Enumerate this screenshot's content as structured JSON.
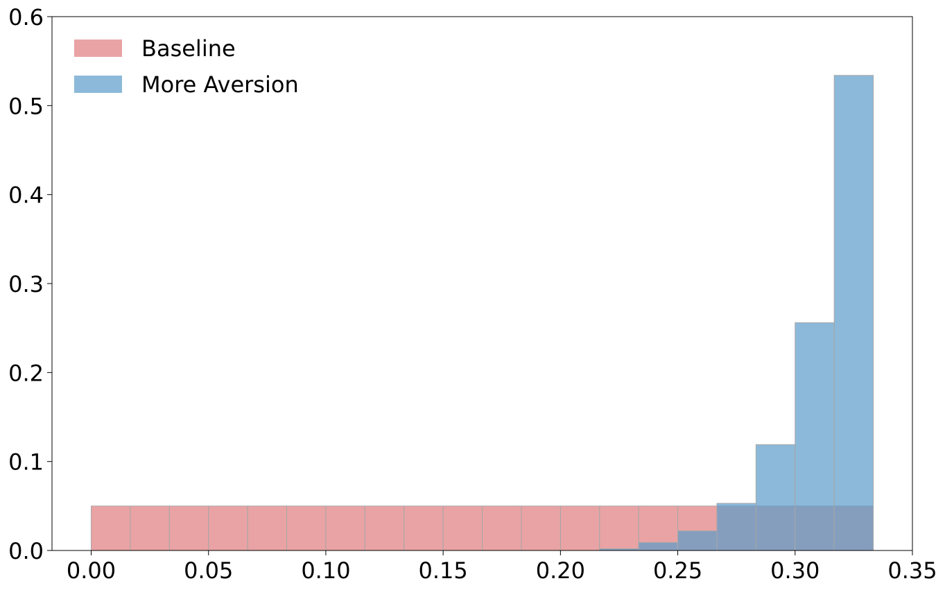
{
  "chart_data": {
    "type": "bar",
    "title": "",
    "xlabel": "",
    "ylabel": "",
    "xlim": [
      -0.0167,
      0.35
    ],
    "ylim": [
      0,
      0.6
    ],
    "x_ticks": [
      "0.00",
      "0.05",
      "0.10",
      "0.15",
      "0.20",
      "0.25",
      "0.30",
      "0.35"
    ],
    "y_ticks": [
      "0.0",
      "0.1",
      "0.2",
      "0.3",
      "0.4",
      "0.5",
      "0.6"
    ],
    "grid": false,
    "legend_position": "top-left",
    "bin_edges": [
      0,
      0.01667,
      0.03333,
      0.05,
      0.06667,
      0.08333,
      0.1,
      0.11667,
      0.13333,
      0.15,
      0.16667,
      0.18333,
      0.2,
      0.21667,
      0.23333,
      0.25,
      0.26667,
      0.28333,
      0.3,
      0.31667,
      0.33333
    ],
    "series": [
      {
        "name": "Baseline",
        "color": "#e07c7e",
        "values": [
          0.05,
          0.05,
          0.05,
          0.05,
          0.05,
          0.05,
          0.05,
          0.05,
          0.05,
          0.05,
          0.05,
          0.05,
          0.05,
          0.05,
          0.05,
          0.05,
          0.05,
          0.05,
          0.05,
          0.05
        ]
      },
      {
        "name": "More Aversion",
        "color": "#5b9bc9",
        "values": [
          0,
          0,
          0,
          0,
          0,
          0,
          0,
          0,
          0,
          0,
          0,
          0,
          0,
          0.002,
          0.009,
          0.022,
          0.053,
          0.119,
          0.256,
          0.534
        ]
      }
    ]
  }
}
